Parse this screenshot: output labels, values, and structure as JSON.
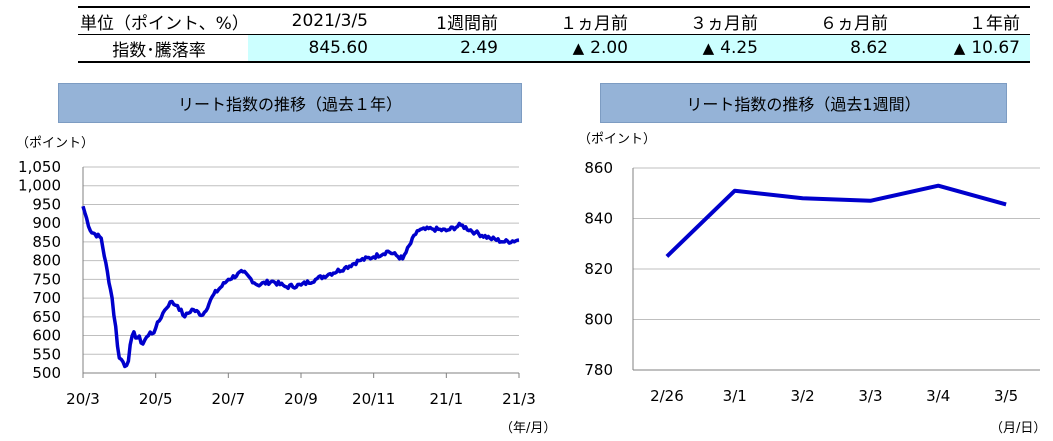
{
  "summary": {
    "header": [
      "単位（ポイント、%）",
      "2021/3/5",
      "1週間前",
      "１ヵ月前",
      "３ヵ月前",
      "６ヵ月前",
      "１年前"
    ],
    "row_label": "指数･騰落率",
    "values": [
      {
        "text": "845.60",
        "mark": ""
      },
      {
        "text": "2.49",
        "mark": ""
      },
      {
        "text": "2.00",
        "mark": "▲"
      },
      {
        "text": "4.25",
        "mark": "▲"
      },
      {
        "text": "8.62",
        "mark": ""
      },
      {
        "text": "10.67",
        "mark": "▲"
      }
    ]
  },
  "chart_data": [
    {
      "type": "line",
      "title": "リート指数の推移（過去１年）",
      "ylabel": "（ポイント）",
      "xlabel": "（年/月）",
      "ylim": [
        500,
        1050
      ],
      "yticks": [
        500,
        550,
        600,
        650,
        700,
        750,
        800,
        850,
        900,
        950,
        1000,
        1050
      ],
      "ytick_labels": [
        "500",
        "550",
        "600",
        "650",
        "700",
        "750",
        "800",
        "850",
        "900",
        "950",
        "1,000",
        "1,050"
      ],
      "xticks": [
        "20/3",
        "20/5",
        "20/7",
        "20/9",
        "20/11",
        "21/1",
        "21/3"
      ],
      "grid": true,
      "series_color": "#0000cc",
      "x": [
        0,
        0.2,
        0.5,
        0.8,
        1.0,
        1.2,
        1.4,
        1.6,
        1.8,
        2.0,
        2.2,
        2.4,
        2.6,
        2.8,
        3.0,
        3.3,
        3.6,
        4.0,
        4.4,
        4.8,
        5.2,
        5.6,
        6.0,
        6.4,
        6.8,
        7.2,
        7.6,
        8.0,
        8.4,
        8.8,
        9.2,
        9.6,
        10.0,
        10.4,
        10.8,
        11.2,
        11.6,
        12.0
      ],
      "values": [
        945,
        880,
        860,
        700,
        540,
        520,
        610,
        580,
        600,
        620,
        660,
        690,
        680,
        650,
        670,
        655,
        710,
        750,
        770,
        735,
        745,
        730,
        735,
        750,
        765,
        780,
        800,
        810,
        825,
        805,
        880,
        885,
        880,
        895,
        875,
        860,
        850,
        855
      ],
      "noise_seed": 7,
      "noise_amp": 12
    },
    {
      "type": "line",
      "title": "リート指数の推移（過去1週間）",
      "ylabel": "（ポイント）",
      "xlabel": "（月/日）",
      "categories": [
        "2/26",
        "3/1",
        "3/2",
        "3/3",
        "3/4",
        "3/5"
      ],
      "values": [
        825,
        851,
        848,
        847,
        853,
        845.6
      ],
      "ylim": [
        780,
        860
      ],
      "yticks": [
        780,
        800,
        820,
        840,
        860
      ],
      "grid": true,
      "series_color": "#0000cc"
    }
  ]
}
